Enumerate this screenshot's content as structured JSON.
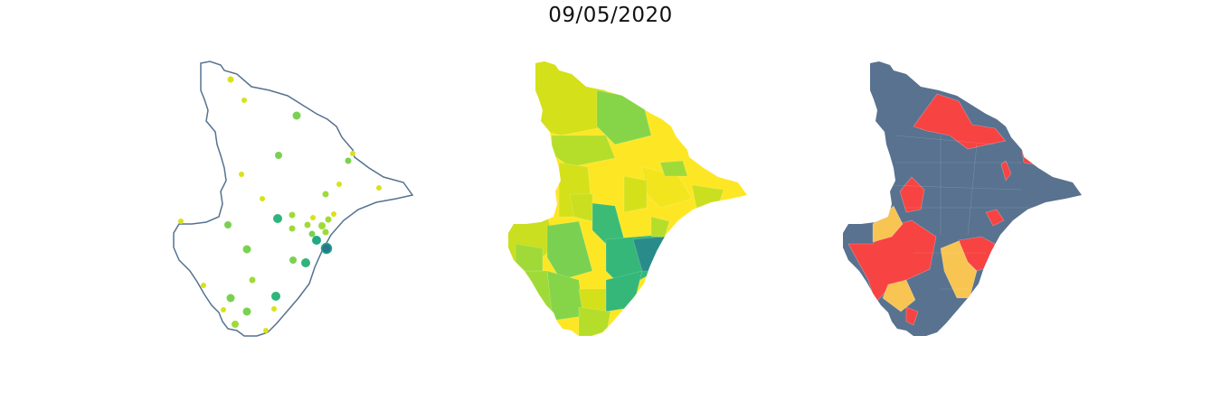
{
  "title": "09/05/2020",
  "colors": {
    "outline": "#557290",
    "viridis_low": "#d8e219",
    "viridis_mid": "#7ad151",
    "viridis_high": "#2a788e",
    "yellow": "#fde725",
    "status_neutral": "#58728f",
    "status_red": "#f84343",
    "status_orange": "#f8c552"
  },
  "panels": [
    {
      "name": "map-points-panel",
      "kind": "bubble-map"
    },
    {
      "name": "map-choropleth-panel",
      "kind": "choropleth-viridis"
    },
    {
      "name": "map-status-panel",
      "kind": "choropleth-categorical"
    }
  ]
}
